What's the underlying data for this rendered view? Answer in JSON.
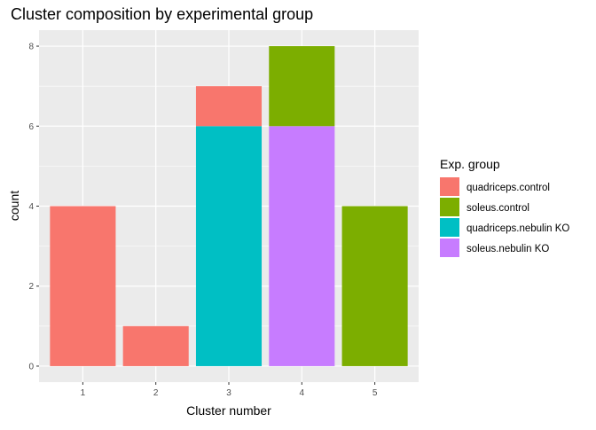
{
  "chart_data": {
    "type": "bar",
    "stacked": true,
    "title": "Cluster composition by experimental group",
    "xlabel": "Cluster number",
    "ylabel": "count",
    "categories": [
      "1",
      "2",
      "3",
      "4",
      "5"
    ],
    "yticks": [
      0,
      2,
      4,
      6,
      8
    ],
    "ylim": [
      -0.4,
      8.4
    ],
    "grid": true,
    "legend": {
      "title": "Exp. group",
      "position": "right"
    },
    "series": [
      {
        "name": "quadriceps.control",
        "color": "#F8766D",
        "values": [
          4,
          1,
          1,
          0,
          0
        ]
      },
      {
        "name": "soleus.control",
        "color": "#7CAE00",
        "values": [
          0,
          0,
          0,
          2,
          4
        ]
      },
      {
        "name": "quadriceps.nebulin KO",
        "color": "#00BFC4",
        "values": [
          0,
          0,
          6,
          0,
          0
        ]
      },
      {
        "name": "soleus.nebulin KO",
        "color": "#C77CFF",
        "values": [
          0,
          0,
          0,
          6,
          0
        ]
      }
    ],
    "stack_order_bottom_to_top": [
      "soleus.nebulin KO",
      "quadriceps.nebulin KO",
      "soleus.control",
      "quadriceps.control"
    ],
    "panel_background": "#EBEBEB",
    "grid_color": "#FFFFFF"
  }
}
